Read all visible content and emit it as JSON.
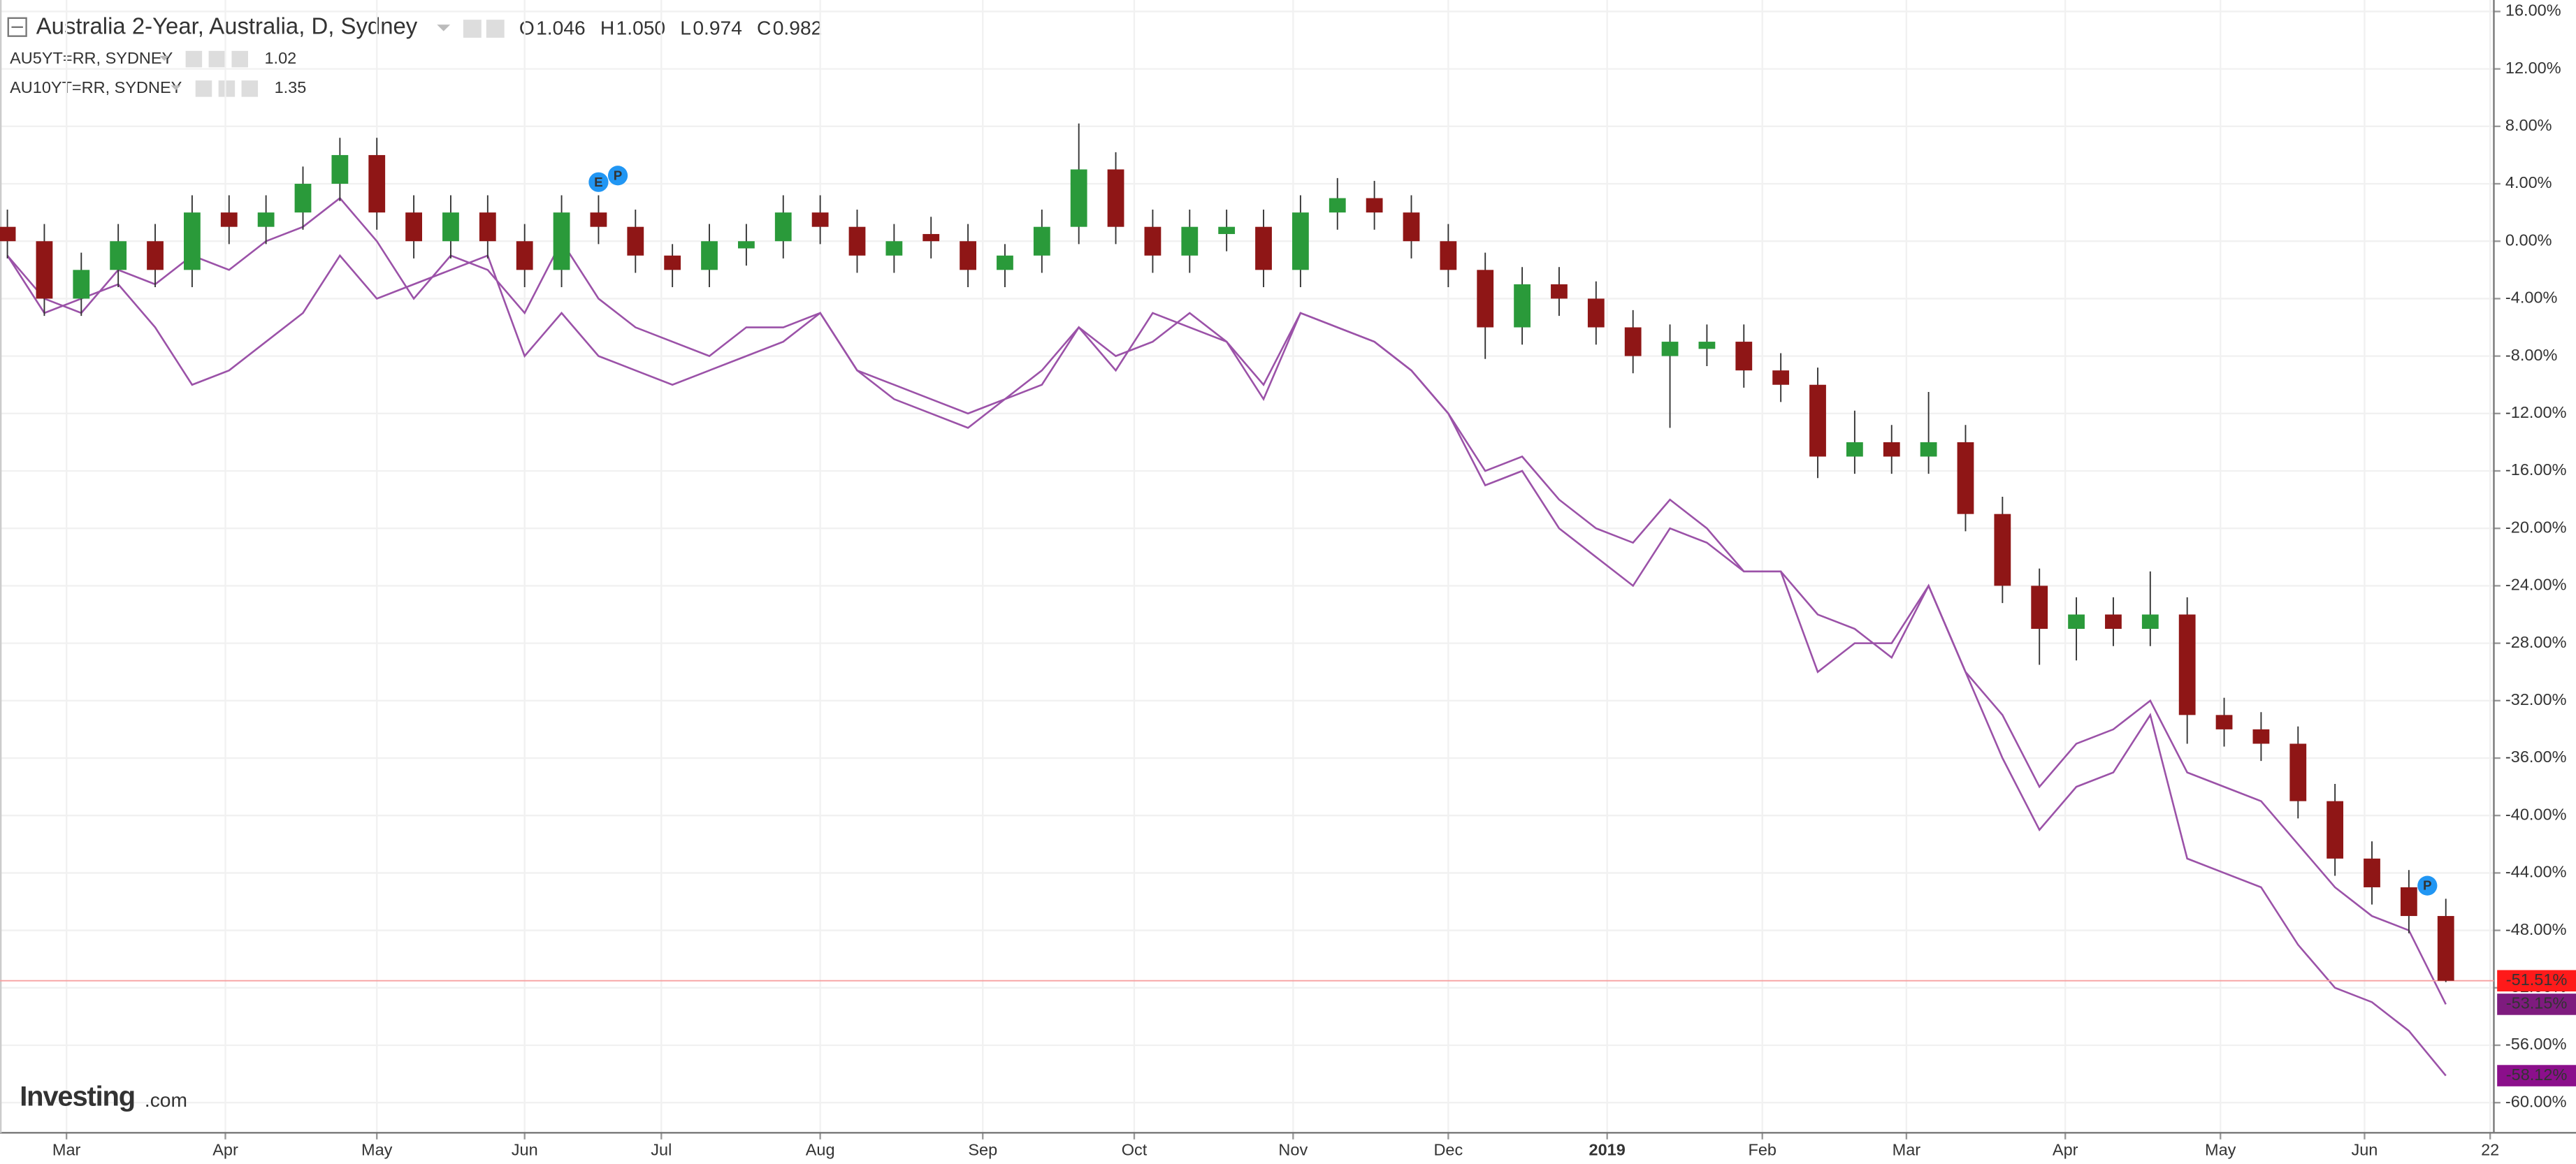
{
  "chart_data": {
    "type": "candlestick",
    "legend": {
      "title": "Australia 2-Year, Australia, D, Sydney",
      "ohlc": [
        {
          "key": "O",
          "value": "1.046"
        },
        {
          "key": "H",
          "value": "1.050"
        },
        {
          "key": "L",
          "value": "0.974"
        },
        {
          "key": "C",
          "value": "0.982"
        }
      ]
    },
    "up_color": "#2a9a3a",
    "down_color": "#8f1616",
    "last_line_color": "#f7a1a1",
    "open": [
      1,
      0,
      -4,
      -2,
      0,
      -2,
      2,
      1,
      2,
      4,
      6,
      2,
      0,
      2,
      0,
      -2,
      2,
      1,
      -1,
      -2,
      -0.5,
      0,
      2,
      1,
      -1,
      0.5,
      0,
      -2,
      -1,
      1,
      5,
      1,
      -1,
      0.5,
      1,
      -2,
      2,
      3,
      2,
      0,
      -2,
      -6,
      -3,
      -4,
      -6,
      -8,
      -7.5,
      -7,
      -9,
      -10,
      -15,
      -14,
      -15,
      -14,
      -19,
      -24,
      -27,
      -26,
      -27,
      -26,
      -33,
      -34,
      -35,
      -39,
      -43,
      -45,
      -47
    ],
    "high": [
      2.2,
      1.2,
      -0.8,
      1.2,
      1.2,
      3.2,
      3.2,
      3.2,
      5.2,
      7.2,
      7.2,
      3.2,
      3.2,
      3.2,
      1.2,
      3.2,
      3.2,
      2.2,
      -0.2,
      1.2,
      1.2,
      3.2,
      3.2,
      2.2,
      1.2,
      1.7,
      1.2,
      -0.2,
      2.2,
      8.2,
      6.2,
      2.2,
      2.2,
      2.2,
      2.2,
      3.2,
      4.4,
      4.2,
      3.2,
      1.2,
      -0.8,
      -1.8,
      -1.8,
      -2.8,
      -4.8,
      -5.8,
      -5.8,
      -5.8,
      -7.8,
      -8.8,
      -11.8,
      -12.8,
      -10.5,
      -12.8,
      -17.8,
      -22.8,
      -24.8,
      -24.8,
      -23,
      -24.8,
      -31.8,
      -32.8,
      -33.8,
      -37.8,
      -41.8,
      -43.8,
      -45.8
    ],
    "low": [
      -1.2,
      -5.2,
      -5.2,
      -3.2,
      -3.2,
      -3.2,
      -0.2,
      -0.2,
      0.8,
      2.8,
      0.8,
      -1.2,
      -1.2,
      -1.2,
      -3.2,
      -3.2,
      -0.2,
      -2.2,
      -3.2,
      -3.2,
      -1.7,
      -1.2,
      -0.2,
      -2.2,
      -2.2,
      -1.2,
      -3.2,
      -3.2,
      -2.2,
      -0.2,
      -0.2,
      -2.2,
      -2.2,
      -0.7,
      -3.2,
      -3.2,
      0.8,
      0.8,
      -1.2,
      -3.2,
      -8.2,
      -7.2,
      -5.2,
      -7.2,
      -9.2,
      -13,
      -8.7,
      -10.2,
      -11.2,
      -16.5,
      -16.2,
      -16.2,
      -16.2,
      -20.2,
      -25.2,
      -29.5,
      -29.2,
      -28.2,
      -28.2,
      -35,
      -35.2,
      -36.2,
      -40.2,
      -44.2,
      -46.2,
      -48.2,
      -51.6
    ],
    "close": [
      0,
      -4,
      -2,
      0,
      -2,
      2,
      1,
      2,
      4,
      6,
      2,
      0,
      2,
      0,
      -2,
      2,
      1,
      -1,
      -2,
      0,
      0,
      2,
      1,
      -1,
      0,
      0,
      -2,
      -1,
      1,
      5,
      1,
      -1,
      1,
      1,
      -2,
      2,
      3,
      2,
      0,
      -2,
      -6,
      -3,
      -4,
      -6,
      -8,
      -7,
      -7,
      -9,
      -10,
      -15,
      -14,
      -15,
      -14,
      -19,
      -24,
      -27,
      -26,
      -27,
      -26,
      -33,
      -34,
      -35,
      -39,
      -43,
      -45,
      -47,
      -51.51
    ],
    "value_labels": [
      null,
      null,
      null,
      null,
      null,
      null,
      null,
      null,
      null,
      null,
      null,
      null,
      null,
      null,
      null,
      null,
      null,
      null,
      null,
      null,
      null,
      null,
      null,
      null,
      null,
      null,
      null,
      null,
      null,
      null,
      null,
      null,
      null,
      null,
      null,
      null,
      null,
      null,
      null,
      null,
      null,
      null,
      null,
      null,
      null,
      null,
      null,
      null,
      null,
      null,
      null,
      null,
      null,
      null,
      null,
      null,
      null,
      null,
      null,
      null,
      null,
      null,
      null,
      null,
      null,
      null,
      "-51.51%"
    ],
    "value_label_color": "#ff1a1a",
    "series": [
      {
        "name": "AU5YT=RR, SYDNEY",
        "legend_value": "1.02",
        "color": "#9b52a8",
        "label_color": "#7e1b7e",
        "values": [
          -1,
          -4,
          -5,
          -2,
          -3,
          -1,
          -2,
          0,
          1,
          3,
          0,
          -4,
          -1,
          -2,
          -5,
          0,
          -4,
          -6,
          -7,
          -8,
          -6,
          -6,
          -5,
          -9,
          -10,
          -11,
          -12,
          -11,
          -10,
          -6,
          -8,
          -7,
          -5,
          -7,
          -10,
          -5,
          -6,
          -7,
          -9,
          -12,
          -16,
          -15,
          -18,
          -20,
          -21,
          -18,
          -20,
          -23,
          -23,
          -26,
          -27,
          -29,
          -24,
          -30,
          -33,
          -38,
          -35,
          -34,
          -32,
          -37,
          -38,
          -39,
          -42,
          -45,
          -47,
          -48,
          -53.15
        ],
        "value_labels": [
          null,
          null,
          null,
          null,
          null,
          null,
          null,
          null,
          null,
          null,
          null,
          null,
          null,
          null,
          null,
          null,
          null,
          null,
          null,
          null,
          null,
          null,
          null,
          null,
          null,
          null,
          null,
          null,
          null,
          null,
          null,
          null,
          null,
          null,
          null,
          null,
          null,
          null,
          null,
          null,
          null,
          null,
          null,
          null,
          null,
          null,
          null,
          null,
          null,
          null,
          null,
          null,
          null,
          null,
          null,
          null,
          null,
          null,
          null,
          null,
          null,
          null,
          null,
          null,
          null,
          null,
          "-53.15%"
        ]
      },
      {
        "name": "AU10YT=RR, SYDNEY",
        "legend_value": "1.35",
        "color": "#9b52a8",
        "label_color": "#8b0f8b",
        "values": [
          -1,
          -5,
          -4,
          -3,
          -6,
          -10,
          -9,
          -7,
          -5,
          -1,
          -4,
          -3,
          -2,
          -1,
          -8,
          -5,
          -8,
          -9,
          -10,
          -9,
          -8,
          -7,
          -5,
          -9,
          -11,
          -12,
          -13,
          -11,
          -9,
          -6,
          -9,
          -5,
          -6,
          -7,
          -11,
          -5,
          -6,
          -7,
          -9,
          -12,
          -17,
          -16,
          -20,
          -22,
          -24,
          -20,
          -21,
          -23,
          -23,
          -30,
          -28,
          -28,
          -24,
          -30,
          -36,
          -41,
          -38,
          -37,
          -33,
          -43,
          -44,
          -45,
          -49,
          -52,
          -53,
          -55,
          -58.12
        ],
        "value_labels": [
          null,
          null,
          null,
          null,
          null,
          null,
          null,
          null,
          null,
          null,
          null,
          null,
          null,
          null,
          null,
          null,
          null,
          null,
          null,
          null,
          null,
          null,
          null,
          null,
          null,
          null,
          null,
          null,
          null,
          null,
          null,
          null,
          null,
          null,
          null,
          null,
          null,
          null,
          null,
          null,
          null,
          null,
          null,
          null,
          null,
          null,
          null,
          null,
          null,
          null,
          null,
          null,
          null,
          null,
          null,
          null,
          null,
          null,
          null,
          null,
          null,
          null,
          null,
          null,
          null,
          null,
          "-58.12%"
        ]
      }
    ],
    "events": [
      {
        "label": "E",
        "x": 16
      },
      {
        "label": "P",
        "x": 16.3
      },
      {
        "label": "P",
        "x": 65.5
      }
    ],
    "xlim": [
      -0.2,
      67.3
    ],
    "xticks": [
      {
        "value": 1.6,
        "label": "Mar"
      },
      {
        "value": 5.9,
        "label": "Apr"
      },
      {
        "value": 10,
        "label": "May"
      },
      {
        "value": 14,
        "label": "Jun"
      },
      {
        "value": 17.7,
        "label": "Jul"
      },
      {
        "value": 22,
        "label": "Aug"
      },
      {
        "value": 26.4,
        "label": "Sep"
      },
      {
        "value": 30.5,
        "label": "Oct"
      },
      {
        "value": 34.8,
        "label": "Nov"
      },
      {
        "value": 39,
        "label": "Dec"
      },
      {
        "value": 43.3,
        "label": "2019"
      },
      {
        "value": 47.5,
        "label": "Feb"
      },
      {
        "value": 51.4,
        "label": "Mar"
      },
      {
        "value": 55.7,
        "label": "Apr"
      },
      {
        "value": 59.9,
        "label": "May"
      },
      {
        "value": 63.8,
        "label": "Jun"
      },
      {
        "value": 67.2,
        "label": "22"
      }
    ],
    "ylim": [
      -62.1,
      16.8
    ],
    "yticks": [
      {
        "value": 16,
        "label": "16.00%"
      },
      {
        "value": 12,
        "label": "12.00%"
      },
      {
        "value": 8,
        "label": "8.00%"
      },
      {
        "value": 4,
        "label": "4.00%"
      },
      {
        "value": 0,
        "label": "0.00%"
      },
      {
        "value": -4,
        "label": "-4.00%"
      },
      {
        "value": -8,
        "label": "-8.00%"
      },
      {
        "value": -12,
        "label": "-12.00%"
      },
      {
        "value": -16,
        "label": "-16.00%"
      },
      {
        "value": -20,
        "label": "-20.00%"
      },
      {
        "value": -24,
        "label": "-24.00%"
      },
      {
        "value": -28,
        "label": "-28.00%"
      },
      {
        "value": -32,
        "label": "-32.00%"
      },
      {
        "value": -36,
        "label": "-36.00%"
      },
      {
        "value": -40,
        "label": "-40.00%"
      },
      {
        "value": -44,
        "label": "-44.00%"
      },
      {
        "value": -48,
        "label": "-48.00%"
      },
      {
        "value": -52,
        "label": "-52.00%"
      },
      {
        "value": -56,
        "label": "-56.00%"
      },
      {
        "value": -60,
        "label": "-60.00%"
      }
    ],
    "grid": true,
    "watermark": [
      "Investing",
      ".com"
    ]
  }
}
